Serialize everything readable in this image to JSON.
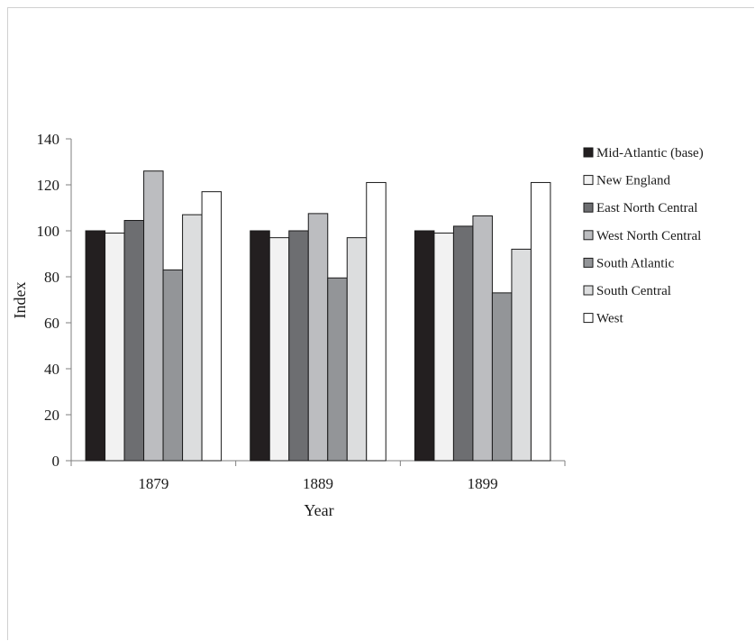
{
  "chart_data": {
    "type": "bar",
    "title": "",
    "xlabel": "Year",
    "ylabel": "Index",
    "ylim": [
      0,
      140
    ],
    "yticks": [
      "0",
      "20",
      "40",
      "60",
      "80",
      "100",
      "120",
      "140"
    ],
    "grid": false,
    "legend_position": "right",
    "categories": [
      "1879",
      "1889",
      "1899"
    ],
    "series": [
      {
        "name": "Mid-Atlantic (base)",
        "color": "#231f20",
        "values": [
          100,
          100,
          100
        ]
      },
      {
        "name": "New England",
        "color": "#f2f2f2",
        "values": [
          99,
          97,
          99
        ]
      },
      {
        "name": "East North Central",
        "color": "#6d6e71",
        "values": [
          104.5,
          100,
          102
        ]
      },
      {
        "name": "West North Central",
        "color": "#bcbdc0",
        "values": [
          126,
          107.5,
          106.5
        ]
      },
      {
        "name": "South Atlantic",
        "color": "#939598",
        "values": [
          83,
          79.5,
          73
        ]
      },
      {
        "name": "South Central",
        "color": "#dcddde",
        "values": [
          107,
          97,
          92
        ]
      },
      {
        "name": "West",
        "color": "#ffffff",
        "values": [
          117,
          121,
          121
        ]
      }
    ]
  }
}
